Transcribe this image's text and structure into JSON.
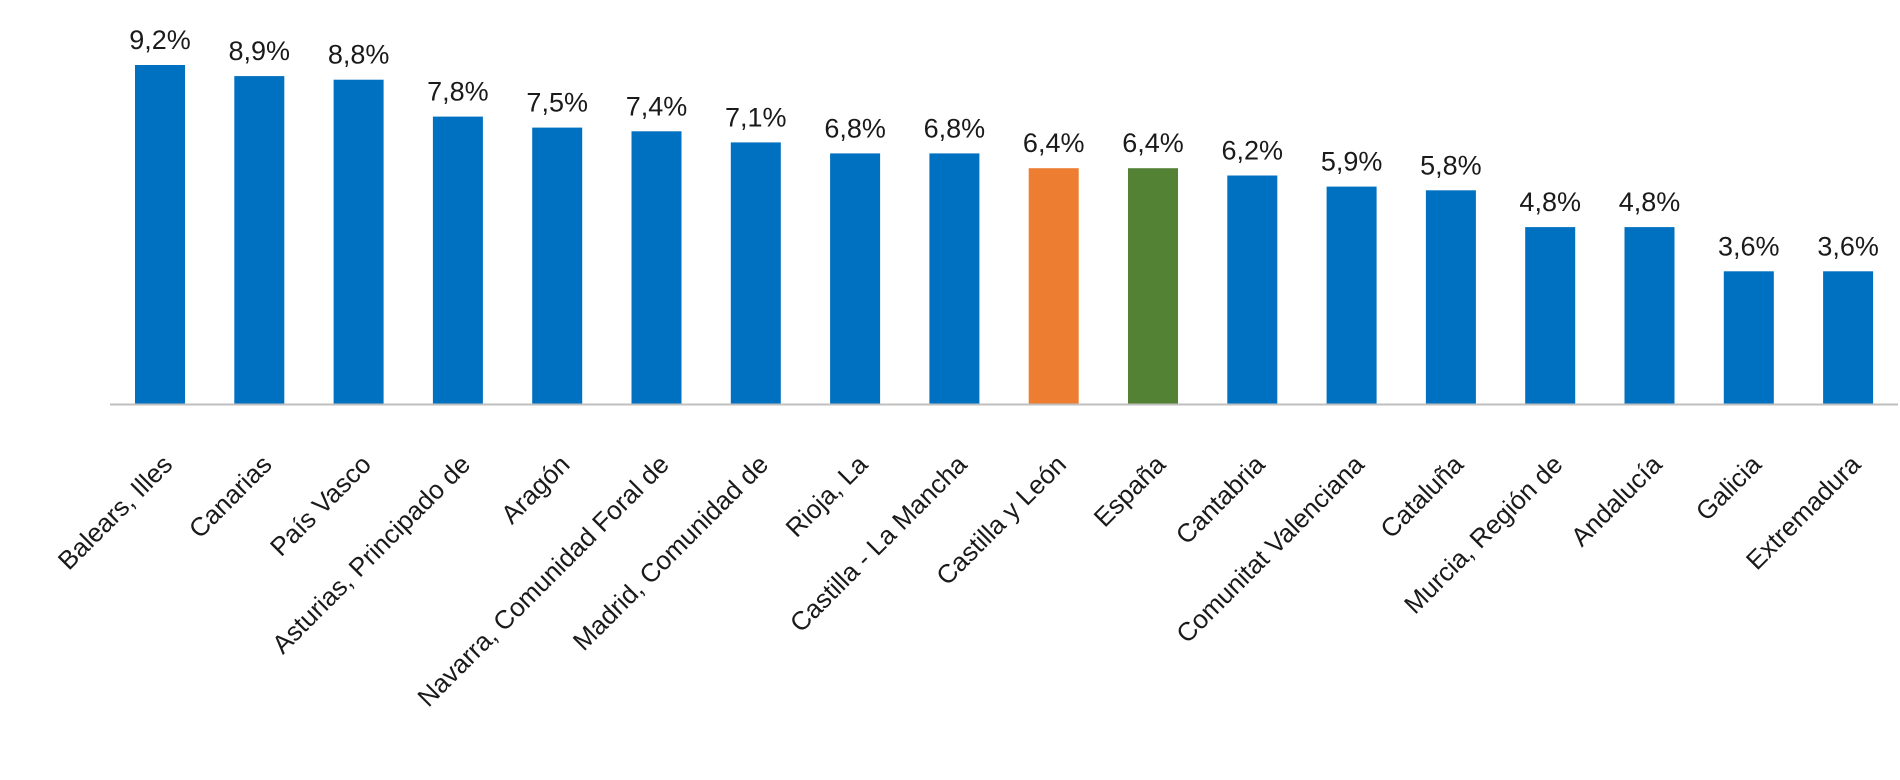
{
  "chart_data": {
    "type": "bar",
    "categories": [
      "Balears, Illes",
      "Canarias",
      "País Vasco",
      "Asturias, Principado de",
      "Aragón",
      "Navarra, Comunidad Foral de",
      "Madrid, Comunidad de",
      "Rioja, La",
      "Castilla - La Mancha",
      "Castilla y León",
      "España",
      "Cantabria",
      "Comunitat Valenciana",
      "Cataluña",
      "Murcia, Región de",
      "Andalucía",
      "Galicia",
      "Extremadura"
    ],
    "values": [
      9.2,
      8.9,
      8.8,
      7.8,
      7.5,
      7.4,
      7.1,
      6.8,
      6.8,
      6.4,
      6.4,
      6.2,
      5.9,
      5.8,
      4.8,
      4.8,
      3.6,
      3.6
    ],
    "data_labels": [
      "9,2%",
      "8,9%",
      "8,8%",
      "7,8%",
      "7,5%",
      "7,4%",
      "7,1%",
      "6,8%",
      "6,8%",
      "6,4%",
      "6,4%",
      "6,2%",
      "5,9%",
      "5,8%",
      "4,8%",
      "4,8%",
      "3,6%",
      "3,6%"
    ],
    "bar_colors": [
      "#0070C0",
      "#0070C0",
      "#0070C0",
      "#0070C0",
      "#0070C0",
      "#0070C0",
      "#0070C0",
      "#0070C0",
      "#0070C0",
      "#ED7D31",
      "#548235",
      "#0070C0",
      "#0070C0",
      "#0070C0",
      "#0070C0",
      "#0070C0",
      "#0070C0",
      "#0070C0"
    ],
    "title": "",
    "xlabel": "",
    "ylabel": "",
    "ylim": [
      0,
      9.2
    ],
    "grid": false,
    "legend": "none",
    "axis_color": "#BFBFBF"
  }
}
